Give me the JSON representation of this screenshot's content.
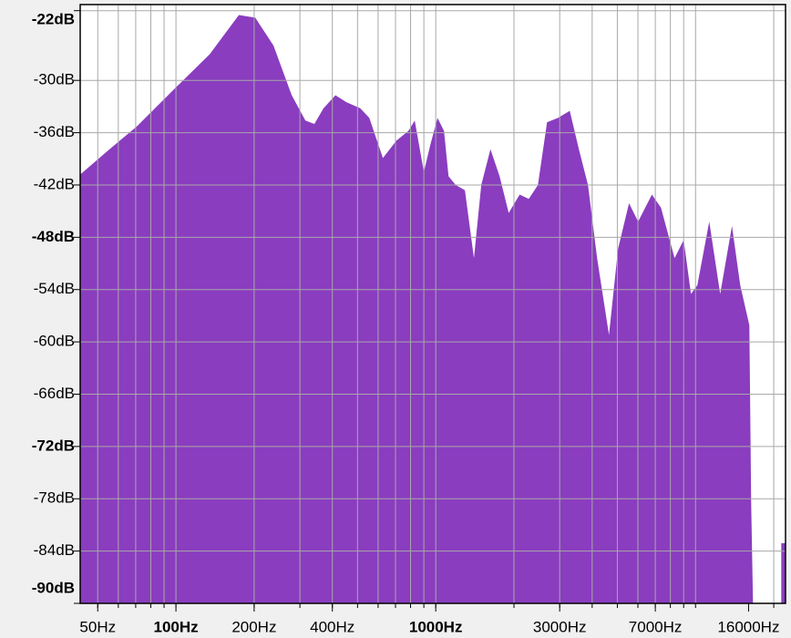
{
  "chart_data": {
    "type": "area",
    "color": "#8a3dbf",
    "x_log": true,
    "xlim": [
      42.8,
      22200
    ],
    "ylim": [
      -21.3,
      -90
    ],
    "xticks": [
      {
        "value": 50,
        "label": "50Hz"
      },
      {
        "value": 100,
        "label": "100Hz",
        "bold": true
      },
      {
        "value": 200,
        "label": "200Hz"
      },
      {
        "value": 400,
        "label": "400Hz"
      },
      {
        "value": 1000,
        "label": "1000Hz",
        "bold": true
      },
      {
        "value": 3000,
        "label": "3000Hz"
      },
      {
        "value": 7000,
        "label": "7000Hz"
      },
      {
        "value": 16000,
        "label": "16000Hz",
        "small": true
      }
    ],
    "x_gridlines": [
      50,
      60,
      70,
      80,
      90,
      100,
      200,
      300,
      400,
      500,
      600,
      700,
      800,
      900,
      1000,
      2000,
      3000,
      4000,
      5000,
      6000,
      7000,
      8000,
      9000,
      10000,
      20000
    ],
    "yticks": [
      {
        "value": -22,
        "label": "-22dB",
        "bold": true
      },
      {
        "value": -30,
        "label": "-30dB"
      },
      {
        "value": -36,
        "label": "-36dB"
      },
      {
        "value": -42,
        "label": "-42dB"
      },
      {
        "value": -48,
        "label": "-48dB",
        "bold": true
      },
      {
        "value": -54,
        "label": "-54dB"
      },
      {
        "value": -60,
        "label": "-60dB"
      },
      {
        "value": -66,
        "label": "-66dB"
      },
      {
        "value": -72,
        "label": "-72dB",
        "bold": true
      },
      {
        "value": -78,
        "label": "-78dB"
      },
      {
        "value": -84,
        "label": "-84dB"
      },
      {
        "value": -90,
        "label": "-90dB",
        "bold": true
      }
    ],
    "grid": true,
    "x": [
      42.8,
      55.5,
      70.6,
      100,
      134.9,
      174.6,
      201.9,
      237.4,
      279,
      315,
      341,
      370,
      411,
      453,
      512,
      555,
      626,
      706,
      785,
      830,
      900,
      953,
      1016,
      1076,
      1120,
      1194,
      1295,
      1403,
      1497,
      1624,
      1761,
      1909,
      2104,
      2281,
      2473,
      2682,
      2953,
      3280,
      3556,
      3855,
      4179,
      4643,
      5033,
      5546,
      6012,
      6792,
      7362,
      8304,
      9002,
      9601,
      10160,
      11290,
      12440,
      13810,
      14860,
      16110,
      16370,
      16640,
      null,
      21380,
      22200
    ],
    "values": [
      -40.8,
      -37.9,
      -35.3,
      -30.8,
      -27.0,
      -22.5,
      -22.8,
      -26.0,
      -31.7,
      -34.6,
      -35.0,
      -33.2,
      -31.7,
      -32.5,
      -33.2,
      -34.3,
      -38.9,
      -36.9,
      -35.8,
      -34.6,
      -40.5,
      -37.4,
      -34.3,
      -35.8,
      -41.0,
      -42.0,
      -42.6,
      -50.4,
      -42.0,
      -37.9,
      -41.0,
      -45.2,
      -43.1,
      -43.6,
      -42.0,
      -34.8,
      -34.3,
      -33.5,
      -37.9,
      -42.0,
      -50.4,
      -59.2,
      -49.3,
      -44.1,
      -46.2,
      -43.1,
      -44.6,
      -50.4,
      -48.3,
      -54.5,
      -53.5,
      -46.2,
      -54.5,
      -46.7,
      -53.5,
      -58.1,
      -78.4,
      -90,
      null,
      -83.1,
      -83.1
    ]
  }
}
